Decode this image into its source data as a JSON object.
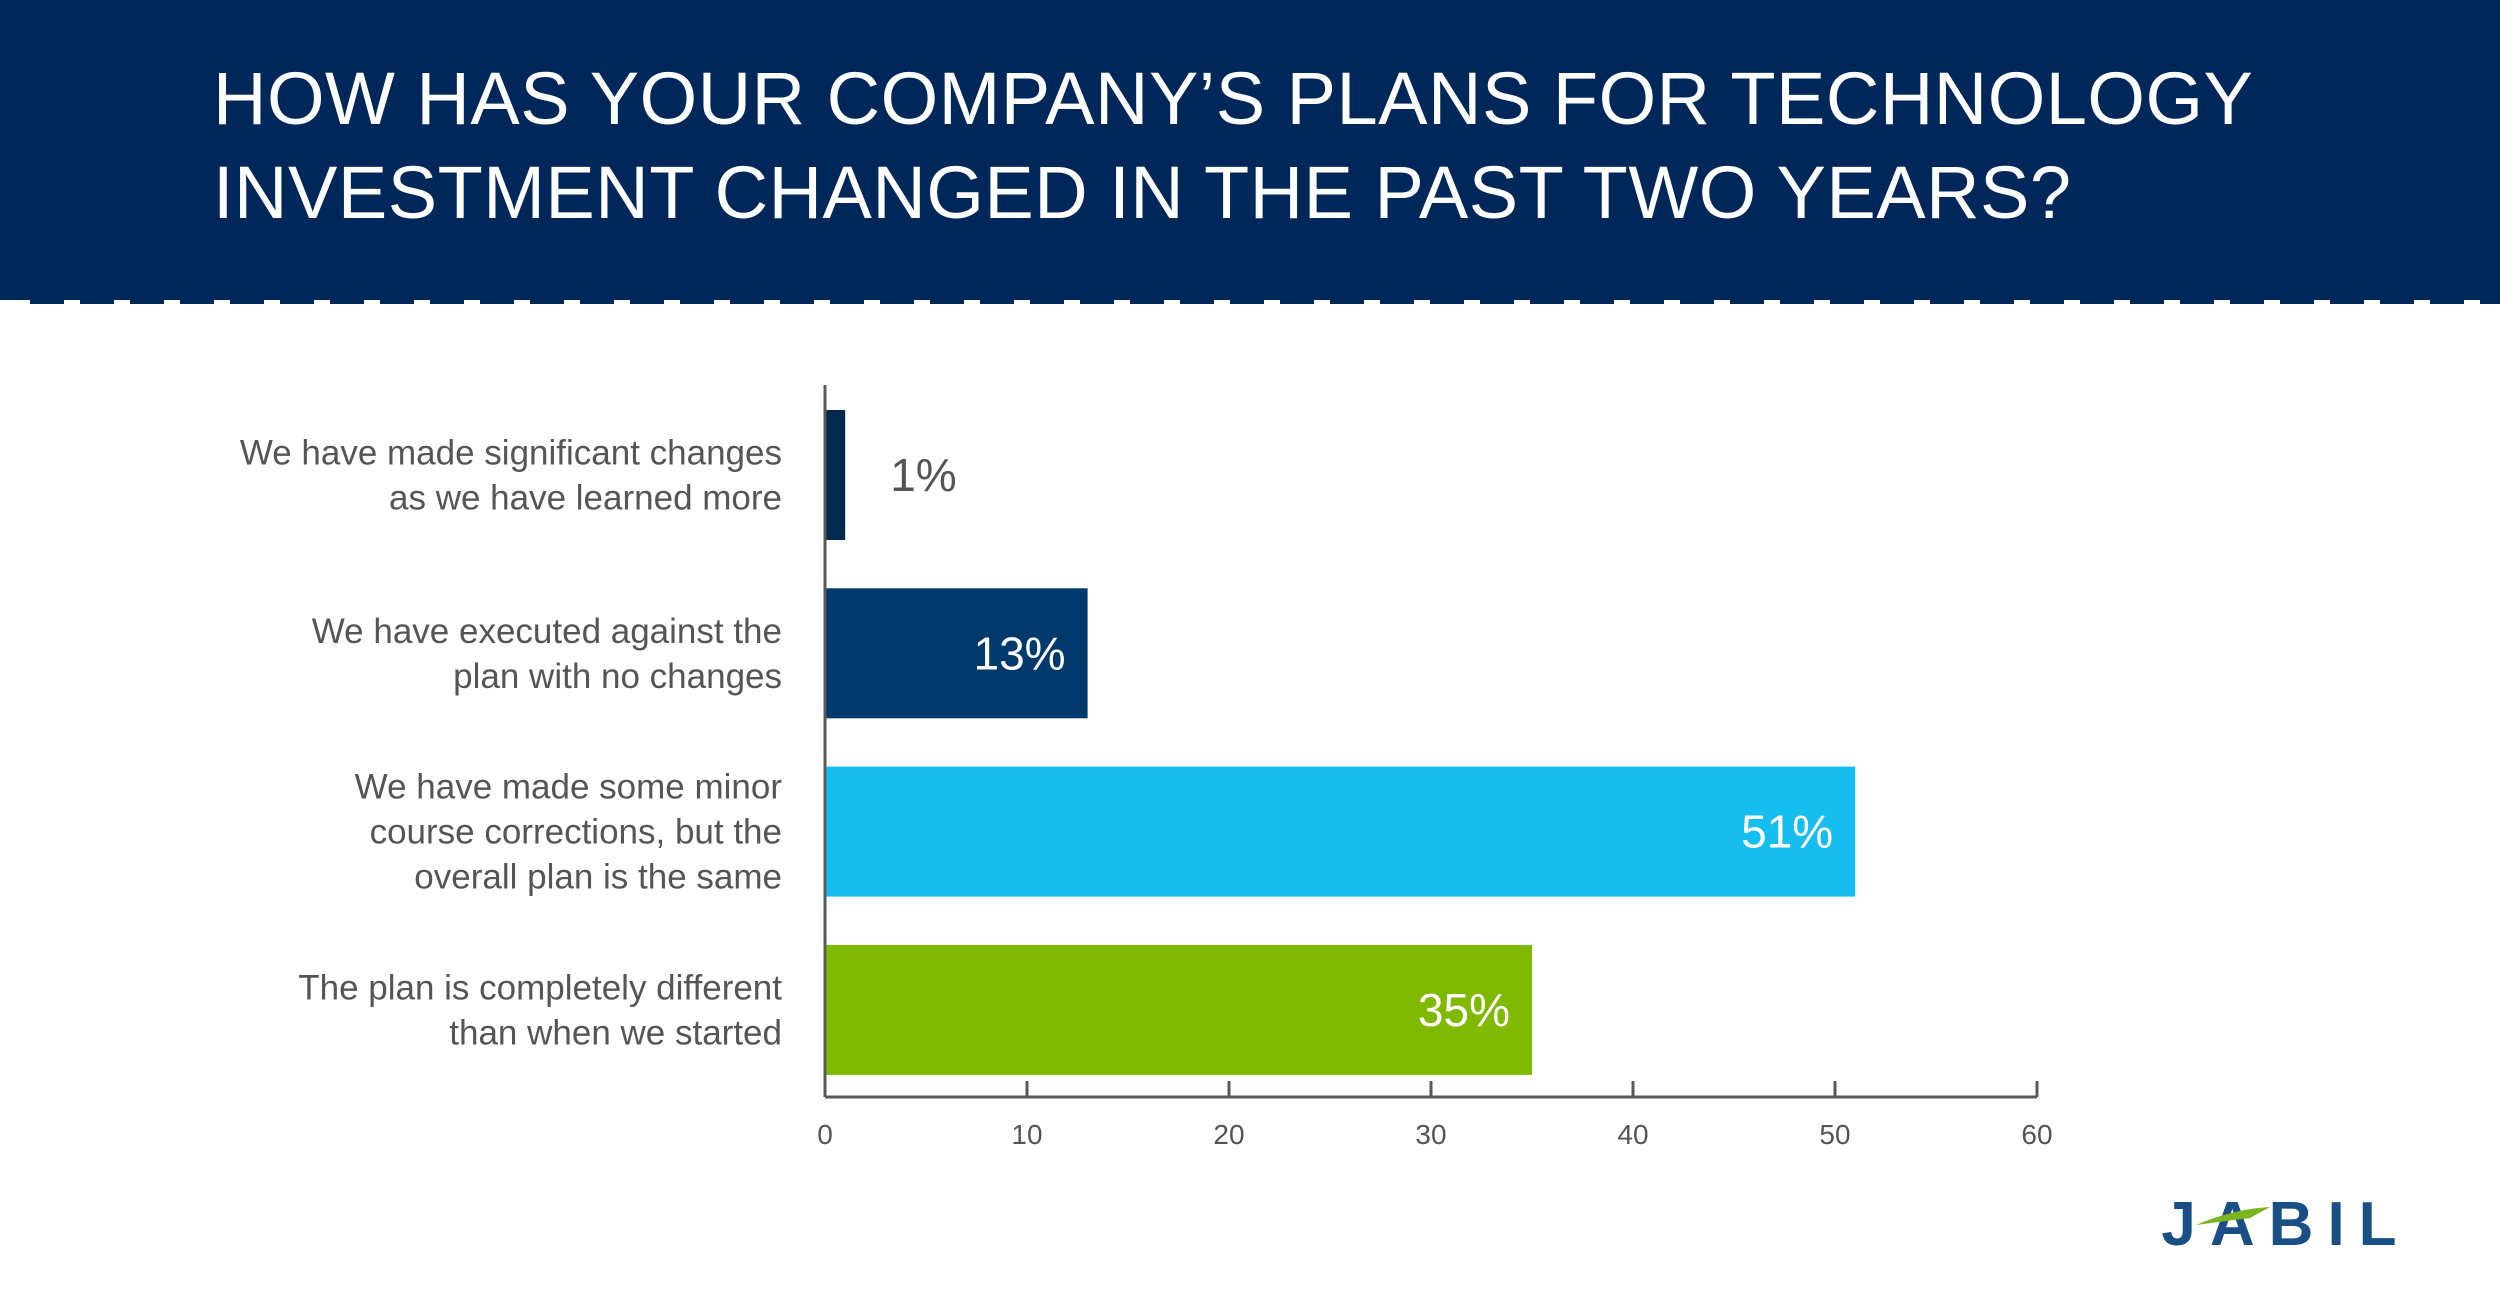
{
  "header": {
    "title_line1": "HOW HAS YOUR COMPANY’S PLANS FOR TECHNOLOGY",
    "title_line2": "INVESTMENT CHANGED IN THE PAST TWO YEARS?"
  },
  "brand": {
    "logo_text": "JABIL",
    "header_color": "#00275a",
    "logo_color": "#1a4f86",
    "logo_accent": "#7ab51d"
  },
  "chart_data": {
    "type": "bar",
    "orientation": "horizontal",
    "categories": [
      [
        "We have made significant changes",
        "as we have learned more"
      ],
      [
        "We have executed against the",
        "plan with no changes"
      ],
      [
        "We have made some minor",
        "course corrections, but the",
        "overall plan is the same"
      ],
      [
        "The plan is completely different",
        "than when we started"
      ]
    ],
    "values": [
      1,
      13,
      51,
      35
    ],
    "data_labels": [
      "1%",
      "13%",
      "51%",
      "35%"
    ],
    "colors": [
      "#05294f",
      "#00396b",
      "#16bdef",
      "#7fba00"
    ],
    "xlim": [
      0,
      60
    ],
    "xticks": [
      "0",
      "10",
      "20",
      "30",
      "40",
      "50",
      "60"
    ],
    "grid": false,
    "legend": "none"
  }
}
